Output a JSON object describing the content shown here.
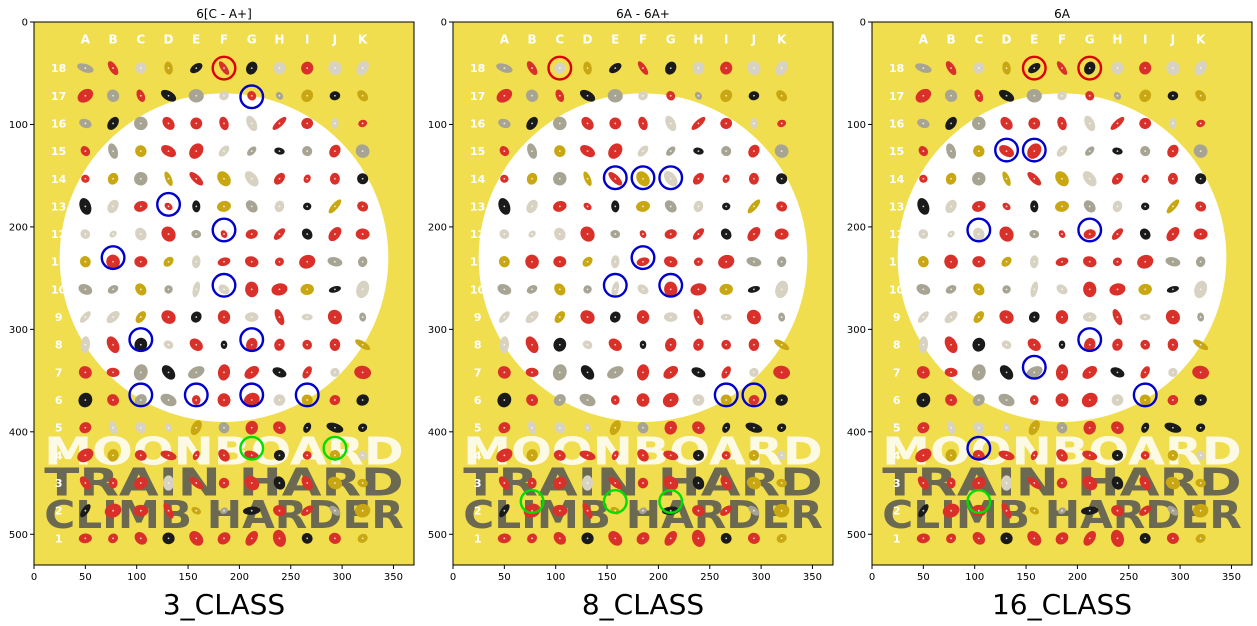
{
  "theme": {
    "board_yellow": "#f0de4e",
    "board_white": "#ffffff",
    "start_hold_color": "#00dd00",
    "intermediate_hold_color": "#0000cc",
    "finish_hold_color": "#dd0000",
    "hold_red": "#d9312a",
    "hold_black": "#1a1a1a",
    "hold_grey": "#a8a493",
    "hold_lightgrey": "#d8d2c2",
    "hold_yellow": "#c8a712",
    "board_title_words": [
      "MOONBOARD",
      "TRAIN HARD",
      "CLIMB HARDER"
    ]
  },
  "board": {
    "columns": [
      "A",
      "B",
      "C",
      "D",
      "E",
      "F",
      "G",
      "H",
      "I",
      "J",
      "K"
    ],
    "rows": [
      "18",
      "17",
      "16",
      "15",
      "14",
      "13",
      "12",
      "11",
      "10",
      "9",
      "8",
      "7",
      "6",
      "5",
      "4",
      "3",
      "2",
      "1"
    ]
  },
  "chart_data": [
    {
      "type": "scatter",
      "title": "6[C - A+]",
      "caption": "3_CLASS",
      "xlim": [
        0,
        370
      ],
      "ylim": [
        530,
        0
      ],
      "xticks": [
        0,
        50,
        100,
        150,
        200,
        250,
        300,
        350
      ],
      "yticks": [
        0,
        100,
        200,
        300,
        400,
        500
      ],
      "start_holds": [
        [
          212,
          416
        ],
        [
          293,
          416
        ]
      ],
      "intermediate_holds": [
        [
          212,
          73
        ],
        [
          131,
          178
        ],
        [
          185,
          203
        ],
        [
          77,
          230
        ],
        [
          185,
          257
        ],
        [
          104,
          310
        ],
        [
          212,
          310
        ],
        [
          104,
          364
        ],
        [
          158,
          364
        ],
        [
          212,
          364
        ],
        [
          266,
          364
        ]
      ],
      "finish_holds": [
        [
          185,
          45
        ]
      ]
    },
    {
      "type": "scatter",
      "title": "6A - 6A+",
      "caption": "8_CLASS",
      "xlim": [
        0,
        370
      ],
      "ylim": [
        530,
        0
      ],
      "xticks": [
        0,
        50,
        100,
        150,
        200,
        250,
        300,
        350
      ],
      "yticks": [
        0,
        100,
        200,
        300,
        400,
        500
      ],
      "start_holds": [
        [
          77,
          468
        ],
        [
          158,
          468
        ],
        [
          212,
          468
        ]
      ],
      "intermediate_holds": [
        [
          158,
          152
        ],
        [
          185,
          152
        ],
        [
          212,
          152
        ],
        [
          185,
          230
        ],
        [
          158,
          257
        ],
        [
          212,
          257
        ],
        [
          266,
          364
        ],
        [
          293,
          364
        ]
      ],
      "finish_holds": [
        [
          104,
          45
        ]
      ]
    },
    {
      "type": "scatter",
      "title": "6A",
      "caption": "16_CLASS",
      "xlim": [
        0,
        370
      ],
      "ylim": [
        530,
        0
      ],
      "xticks": [
        0,
        50,
        100,
        150,
        200,
        250,
        300,
        350
      ],
      "yticks": [
        0,
        100,
        200,
        300,
        400,
        500
      ],
      "start_holds": [
        [
          104,
          468
        ]
      ],
      "intermediate_holds": [
        [
          131,
          125
        ],
        [
          158,
          125
        ],
        [
          104,
          203
        ],
        [
          212,
          203
        ],
        [
          212,
          310
        ],
        [
          158,
          337
        ],
        [
          266,
          364
        ],
        [
          104,
          416
        ]
      ],
      "finish_holds": [
        [
          158,
          45
        ],
        [
          212,
          45
        ]
      ]
    }
  ]
}
